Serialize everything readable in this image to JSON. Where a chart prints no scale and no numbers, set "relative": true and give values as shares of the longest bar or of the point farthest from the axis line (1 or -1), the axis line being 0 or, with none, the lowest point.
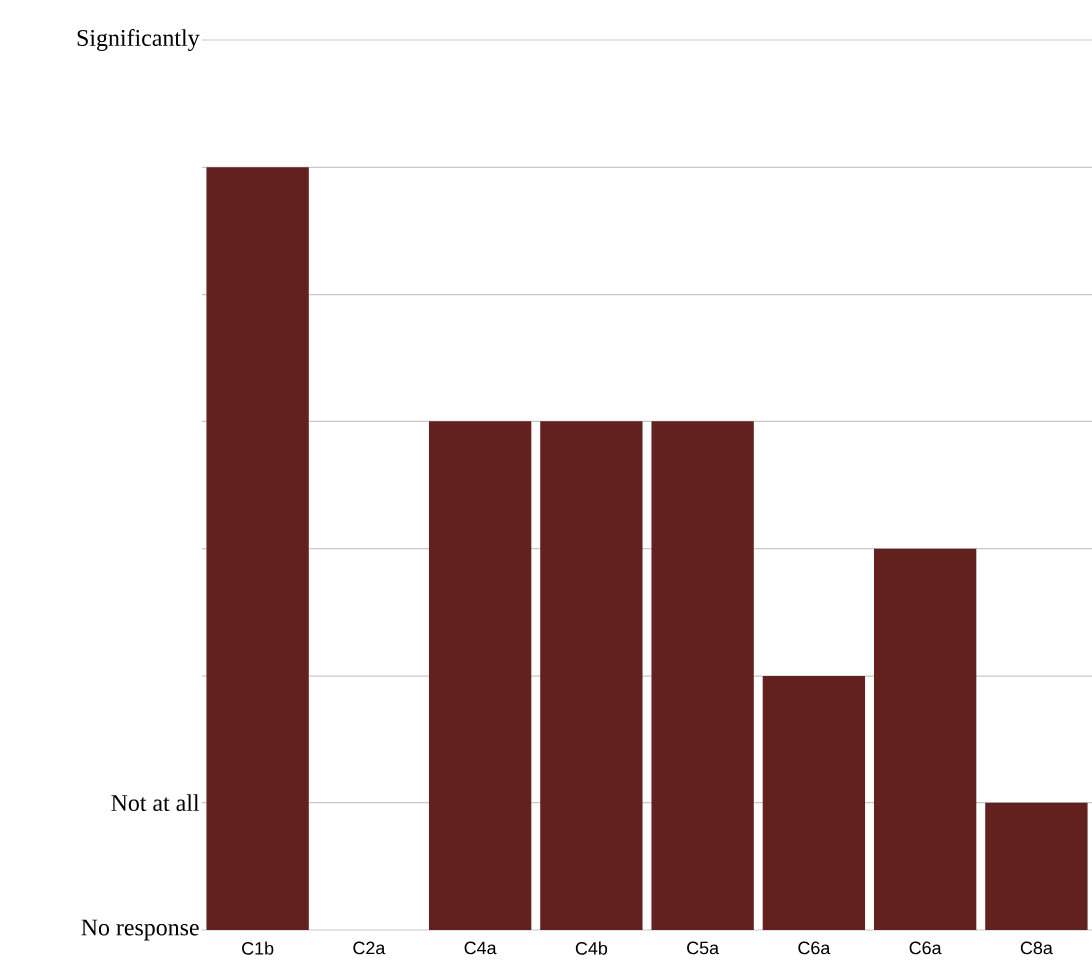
{
  "chart_data": {
    "type": "bar",
    "relative": true,
    "categories": [
      "C1b",
      "C2a",
      "C4a",
      "C4b",
      "C5a",
      "C6a",
      "C6a",
      "C8a"
    ],
    "values": [
      1,
      0,
      0.667,
      0.667,
      0.667,
      0.333,
      0.5,
      0.167
    ],
    "color": "#62211f",
    "ref_lines": [
      {
        "axis": "y",
        "value": 0,
        "label": "No response",
        "color": "#c8c8c8"
      },
      {
        "axis": "y",
        "value": 0.167,
        "label": "Not at all",
        "color": "#c8c8c8"
      },
      {
        "axis": "y",
        "value": 0.333,
        "color": "#c8c8c8"
      },
      {
        "axis": "y",
        "value": 0.5,
        "color": "#c8c8c8"
      },
      {
        "axis": "y",
        "value": 0.667,
        "color": "#c8c8c8"
      },
      {
        "axis": "y",
        "value": 0.833,
        "color": "#c8c8c8"
      },
      {
        "axis": "y",
        "value": 1,
        "color": "#c8c8c8"
      },
      {
        "axis": "y",
        "value": 1.167,
        "label": "Significantly",
        "color": "#c8c8c8"
      }
    ]
  }
}
